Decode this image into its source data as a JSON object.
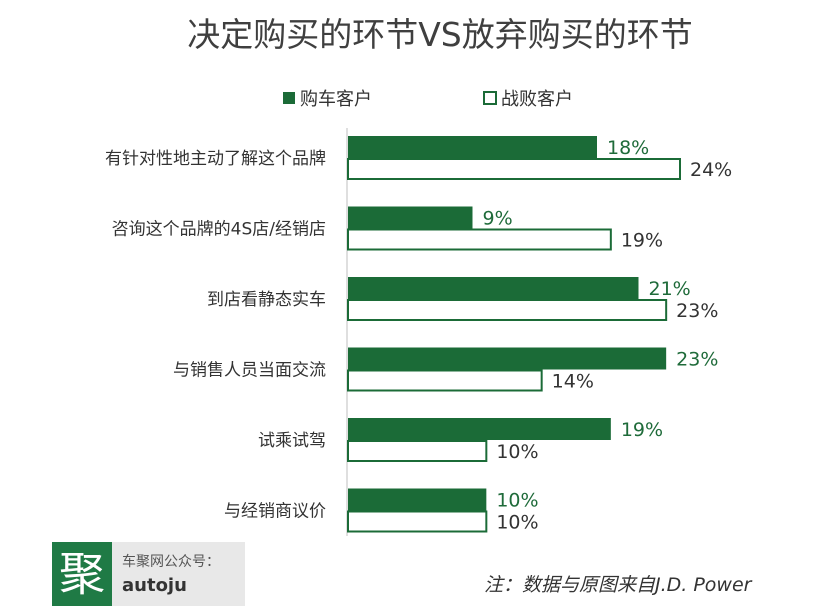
{
  "chart_data": {
    "type": "bar",
    "orientation": "horizontal",
    "title": "决定购买的环节VS放弃购买的环节",
    "categories": [
      "有针对性地主动了解这个品牌",
      "咨询这个品牌的4S店/经销店",
      "到店看静态实车",
      "与销售人员当面交流",
      "试乘试驾",
      "与经销商议价"
    ],
    "series": [
      {
        "name": "购车客户",
        "values": [
          18,
          9,
          21,
          23,
          19,
          10
        ],
        "labels": [
          "18%",
          "9%",
          "21%",
          "23%",
          "19%",
          "10%"
        ],
        "color": "#1b6b37",
        "style": "filled"
      },
      {
        "name": "战败客户",
        "values": [
          24,
          19,
          23,
          14,
          10,
          10
        ],
        "labels": [
          "24%",
          "19%",
          "23%",
          "14%",
          "10%",
          "10%"
        ],
        "color": "#1b6b37",
        "style": "outline"
      }
    ],
    "unit": "%",
    "xlim": [
      0,
      24
    ],
    "grid": false,
    "legend_position": "top"
  },
  "colors": {
    "accent": "#1b6b37",
    "text": "#333333",
    "title": "#3f3f3f"
  },
  "watermark": {
    "logo_char": "聚",
    "line1": "车聚网公众号：",
    "line2": "autoju"
  },
  "source_note": "注：数据与原图来自J.D. Power"
}
